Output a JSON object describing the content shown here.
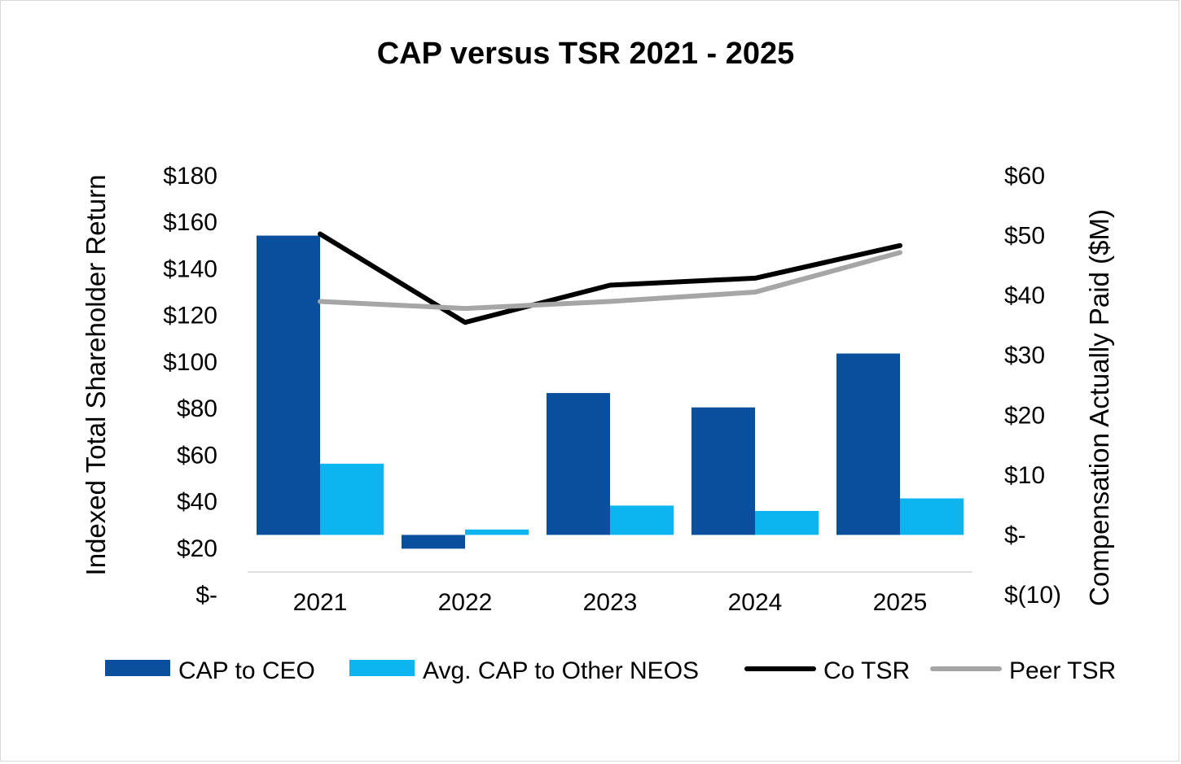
{
  "chart_data": {
    "type": "bar",
    "title": "CAP versus TSR 2021 - 2025",
    "categories": [
      "2021",
      "2022",
      "2023",
      "2024",
      "2025"
    ],
    "left_axis": {
      "label": "Indexed Total Shareholder Return",
      "range": [
        0,
        180
      ],
      "ticks": [
        "$-",
        "$20",
        "$40",
        "$60",
        "$80",
        "$100",
        "$120",
        "$140",
        "$160",
        "$180"
      ]
    },
    "right_axis": {
      "label": "Compensation Actually Paid ($M)",
      "range": [
        -10,
        60
      ],
      "ticks": [
        "$(10)",
        "$-",
        "$10",
        "$20",
        "$30",
        "$40",
        "$50",
        "$60"
      ]
    },
    "series": [
      {
        "name": "CAP to CEO",
        "kind": "bar",
        "axis": "right",
        "color": "#0a4f9e",
        "values": [
          50.0,
          -2.3,
          23.7,
          21.3,
          30.3
        ]
      },
      {
        "name": "Avg. CAP to Other NEOS",
        "kind": "bar",
        "axis": "right",
        "color": "#0cb5ee",
        "values": [
          11.9,
          0.9,
          4.9,
          4.0,
          6.1
        ]
      },
      {
        "name": "Co TSR",
        "kind": "line",
        "axis": "left",
        "color": "#000000",
        "values": [
          155,
          117,
          133,
          136,
          150
        ]
      },
      {
        "name": "Peer TSR",
        "kind": "line",
        "axis": "left",
        "color": "#a6a6a6",
        "values": [
          126,
          123,
          126,
          130,
          147
        ]
      }
    ],
    "legend_position": "bottom",
    "grid": false
  }
}
